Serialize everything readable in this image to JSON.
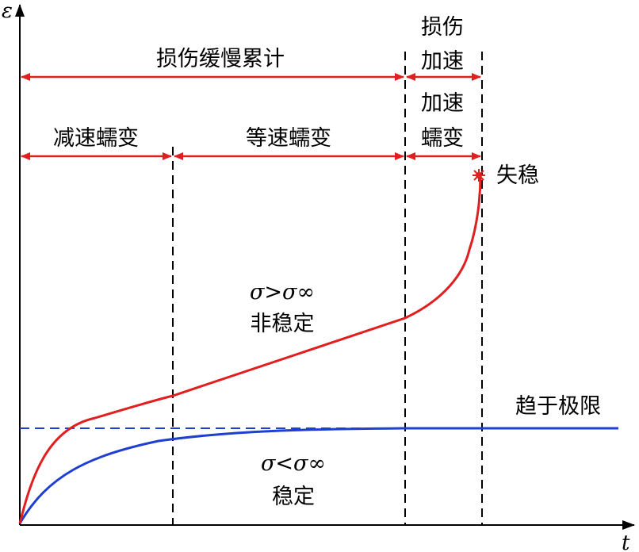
{
  "axes": {
    "y_label": "ε",
    "x_label": "t"
  },
  "phases": {
    "damage_slow_accumulation": "损伤缓慢累计",
    "damage_accelerating": [
      "损伤",
      "加速"
    ],
    "decelerating_creep": "减速蠕变",
    "constant_creep": "等速蠕变",
    "accelerating_creep": [
      "加速",
      "蠕变"
    ]
  },
  "annotations": {
    "instability": "失稳",
    "tends_to_limit": "趋于极限",
    "unstable_condition": "σ>σ∞",
    "unstable": "非稳定",
    "stable_condition": "σ<σ∞",
    "stable": "稳定"
  },
  "colors": {
    "unstable_curve": "#e02020",
    "stable_curve": "#1f3fd0",
    "axes": "#000000"
  }
}
